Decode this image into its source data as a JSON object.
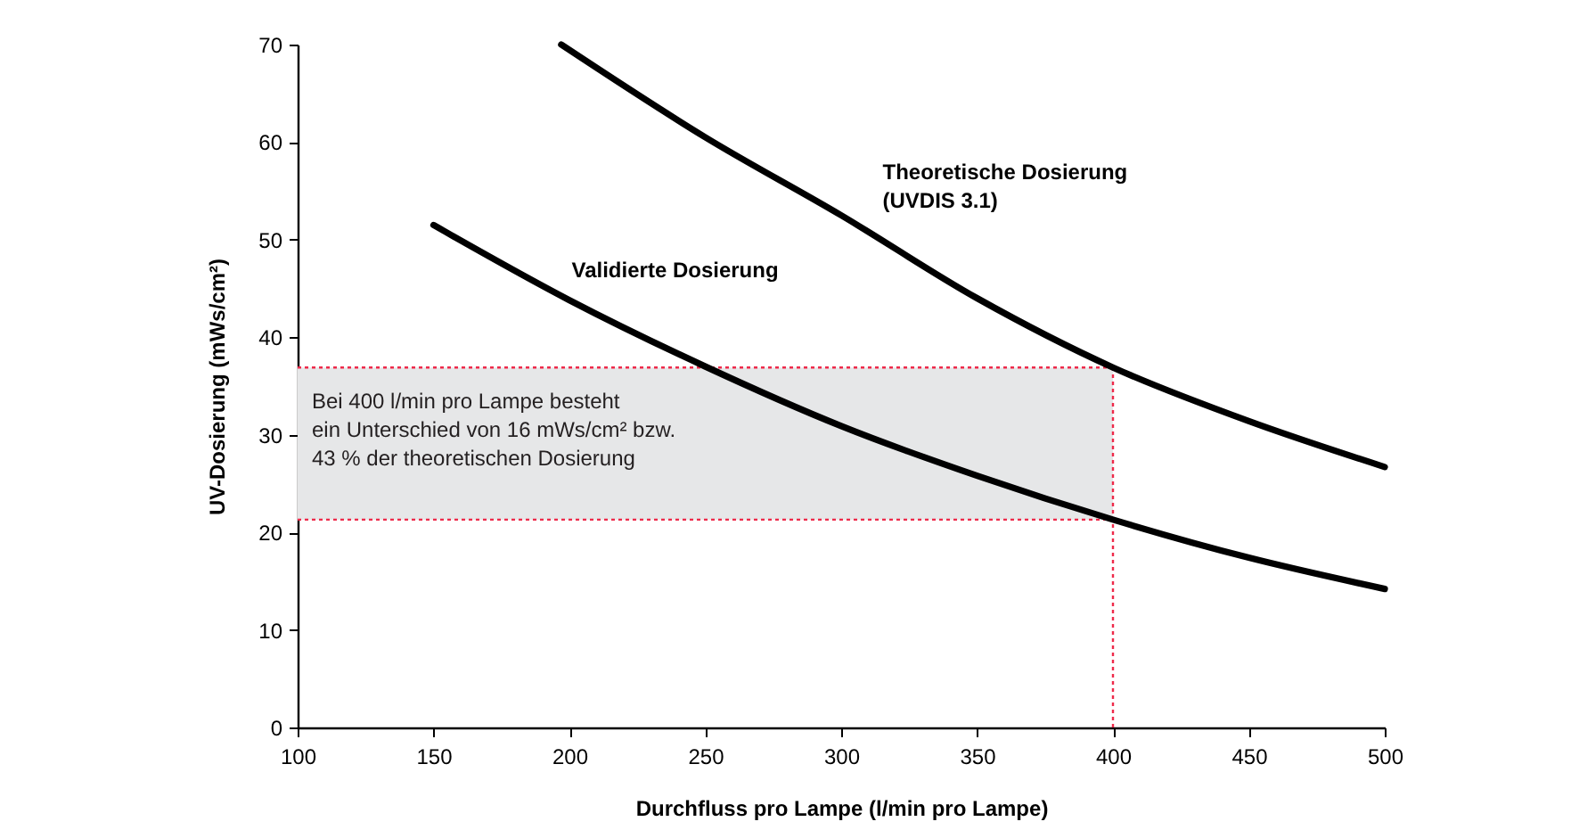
{
  "chart_data": {
    "type": "line",
    "xlabel": "Durchfluss pro Lampe (l/min pro Lampe)",
    "ylabel": "UV-Dosierung (mWs/cm²)",
    "xlim": [
      100,
      500
    ],
    "xticks": [
      100,
      150,
      200,
      250,
      300,
      350,
      400,
      450,
      500
    ],
    "ylim": [
      0,
      70
    ],
    "yticks": [
      0,
      10,
      20,
      30,
      40,
      50,
      60,
      70
    ],
    "grid": false,
    "marker": "none",
    "line_style": "solid",
    "series": [
      {
        "name": "Theoretische Dosierung (UVDIS 3.1)",
        "color": "#000000",
        "x": [
          197,
          250,
          300,
          350,
          400,
          450,
          500
        ],
        "values": [
          70,
          60.5,
          52.5,
          44,
          36.9,
          31.4,
          26.7
        ]
      },
      {
        "name": "Validierte Dosierung",
        "color": "#000000",
        "x": [
          150,
          200,
          250,
          300,
          350,
          400,
          450,
          500
        ],
        "values": [
          51.5,
          43.8,
          37,
          30.9,
          25.8,
          21.3,
          17.4,
          14.2
        ]
      }
    ],
    "ref_lines": [
      {
        "axis": "y",
        "value": 36.9,
        "color": "#ee2a4a",
        "line_style": "dotted"
      },
      {
        "axis": "y",
        "value": 21.3,
        "color": "#ee2a4a",
        "line_style": "dotted"
      },
      {
        "axis": "x",
        "value": 400,
        "color": "#ee2a4a",
        "line_style": "dotted"
      }
    ],
    "bands": [
      {
        "axis": "y",
        "from": 21.3,
        "to": 36.9,
        "color": "#e6e7e8"
      }
    ],
    "annotations": [
      "Bei 400 l/min pro Lampe besteht\nein Unterschied von 16 mWs/cm² bzw.\n43 % der theoretischen Dosierung"
    ]
  }
}
